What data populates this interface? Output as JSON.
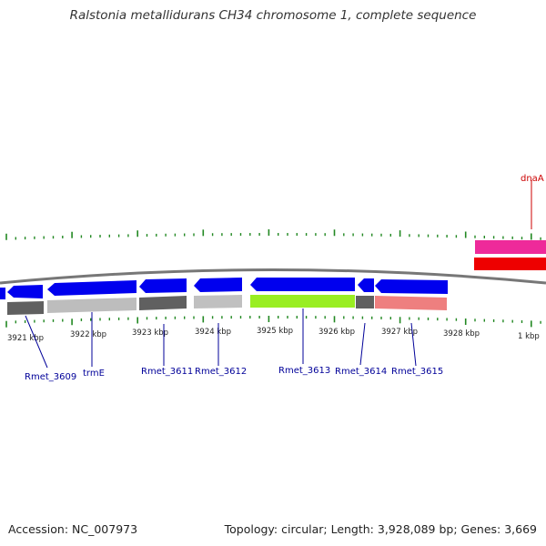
{
  "title": "Ralstonia metallidurans CH34 chromosome 1, complete sequence",
  "footer": {
    "accession": "Accession: NC_007973",
    "topology": "Topology: circular; Length: 3,928,089 bp; Genes: 3,669"
  },
  "colors": {
    "forward_gene": "#0000ee",
    "dnaA_gene": "#ee0000",
    "dnaA_label": "#cc0000",
    "gene_label": "#000099",
    "tick": "#228822",
    "backbone": "#777777"
  },
  "scale_labels": [
    "3921 kbp",
    "3922 kbp",
    "3923 kbp",
    "3924 kbp",
    "3925 kbp",
    "3926 kbp",
    "3927 kbp",
    "3928 kbp",
    "1 kbp"
  ],
  "gene_labels": [
    "Rmet_3609",
    "trmE",
    "Rmet_3611",
    "Rmet_3612",
    "Rmet_3613",
    "Rmet_3614",
    "Rmet_3615"
  ],
  "other_labels": {
    "dnaA": "dnaA"
  }
}
